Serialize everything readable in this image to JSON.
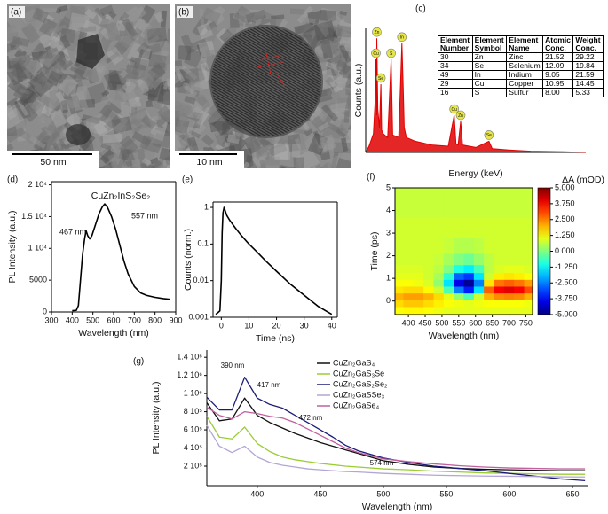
{
  "chart_data": [
    {
      "type": "image",
      "panel": "(a)",
      "scale_bar": "50 nm"
    },
    {
      "type": "image",
      "panel": "(b)",
      "scale_bar": "10 nm"
    },
    {
      "type": "spectrum",
      "panel": "(c)",
      "xlabel": "Energy (keV)",
      "ylabel": "Counts (a.u.)",
      "color": "#e00000",
      "xlim": [
        0,
        20
      ],
      "ylim": [
        0,
        100
      ],
      "x": [
        0,
        0.3,
        0.5,
        0.7,
        0.85,
        0.93,
        1.0,
        1.01,
        1.1,
        1.25,
        1.38,
        1.45,
        1.6,
        2.0,
        2.31,
        2.45,
        3.0,
        3.29,
        3.4,
        3.5,
        3.7,
        4.5,
        6,
        7.5,
        8.04,
        8.2,
        8.4,
        8.63,
        8.8,
        10,
        11.2,
        11.5,
        13,
        15,
        18,
        20
      ],
      "values": [
        0,
        5,
        10,
        15,
        40,
        75,
        30,
        92,
        35,
        20,
        55,
        18,
        15,
        12,
        75,
        14,
        12,
        88,
        55,
        20,
        12,
        9,
        6,
        5,
        30,
        7,
        6,
        25,
        6,
        4,
        9,
        3,
        2,
        1,
        0.5,
        0
      ],
      "peaks": [
        {
          "label": "Cu",
          "x": 0.93,
          "y": 75
        },
        {
          "label": "Zn",
          "x": 1.01,
          "y": 92
        },
        {
          "label": "Se",
          "x": 1.38,
          "y": 55
        },
        {
          "label": "S",
          "x": 2.31,
          "y": 75
        },
        {
          "label": "In",
          "x": 3.29,
          "y": 88
        },
        {
          "label": "Cu",
          "x": 8.04,
          "y": 30
        },
        {
          "label": "Zn",
          "x": 8.63,
          "y": 25
        },
        {
          "label": "Se",
          "x": 11.2,
          "y": 9
        }
      ],
      "table": {
        "columns": [
          "Element Number",
          "Element Symbol",
          "Element Name",
          "Atomic Conc.",
          "Weight Conc."
        ],
        "rows": [
          [
            "30",
            "Zn",
            "Zinc",
            "21.52",
            "29.22"
          ],
          [
            "34",
            "Se",
            "Selenium",
            "12.09",
            "19.84"
          ],
          [
            "49",
            "In",
            "Indium",
            "9.05",
            "21.59"
          ],
          [
            "29",
            "Cu",
            "Copper",
            "10.95",
            "14.45"
          ],
          [
            "16",
            "S",
            "Sulfur",
            "8.00",
            "5.33"
          ]
        ]
      }
    },
    {
      "type": "line",
      "panel": "(d)",
      "title": "CuZn₂InS₂Se₂",
      "xlabel": "Wavelength (nm)",
      "ylabel": "PL Intensity (a.u.)",
      "color": "#000000",
      "xlim": [
        300,
        900
      ],
      "xticks": [
        300,
        400,
        500,
        600,
        700,
        800,
        900
      ],
      "ylim": [
        0,
        20500
      ],
      "yticks": [
        0,
        5000,
        {
          "value": 10000,
          "label": "1 10⁴"
        },
        {
          "value": 15000,
          "label": "1.5 10⁴"
        },
        {
          "value": 20000,
          "label": "2 10⁴"
        }
      ],
      "x": [
        400,
        420,
        430,
        440,
        450,
        460,
        467,
        475,
        485,
        495,
        510,
        530,
        545,
        557,
        570,
        590,
        610,
        630,
        650,
        670,
        700,
        730,
        760,
        800,
        840,
        870
      ],
      "values": [
        200,
        250,
        1000,
        5000,
        9000,
        11500,
        12800,
        12000,
        11500,
        12000,
        13500,
        15500,
        16500,
        17000,
        16500,
        15000,
        13000,
        10500,
        8000,
        6000,
        4000,
        3000,
        2600,
        2300,
        2100,
        2000
      ],
      "annotations": [
        "467 nm",
        "557 nm"
      ]
    },
    {
      "type": "line",
      "panel": "(e)",
      "xlabel": "Time (ns)",
      "ylabel": "Counts (norm.)",
      "color": "#000000",
      "log_y": true,
      "xlim": [
        -3,
        42
      ],
      "xticks": [
        0,
        10,
        20,
        30,
        40
      ],
      "ylim": [
        0.001,
        1.4
      ],
      "yticks": [
        0.001,
        0.01,
        0.1,
        1
      ],
      "x": [
        -2,
        -0.5,
        0,
        0.3,
        0.6,
        1,
        2,
        3,
        5,
        7,
        10,
        13,
        16,
        20,
        25,
        30,
        35,
        40
      ],
      "values": [
        0.0012,
        0.0015,
        0.01,
        0.2,
        0.7,
        1,
        0.6,
        0.45,
        0.28,
        0.18,
        0.1,
        0.06,
        0.035,
        0.018,
        0.008,
        0.004,
        0.002,
        0.0012
      ]
    },
    {
      "type": "heatmap",
      "panel": "(f)",
      "xlabel": "Wavelength (nm)",
      "ylabel": "Time (ps)",
      "colorbar_title": "ΔA (mOD)",
      "colormap": "jet",
      "xlim": [
        360,
        770
      ],
      "xticks": [
        400,
        450,
        500,
        550,
        600,
        650,
        700,
        750
      ],
      "ylim": [
        -0.6,
        5
      ],
      "yticks": [
        0,
        1,
        2,
        3,
        4,
        5
      ],
      "clim": [
        -5,
        5
      ],
      "cticks": [
        {
          "value": 5,
          "label": "5.000"
        },
        {
          "value": 3.75,
          "label": "3.750"
        },
        {
          "value": 2.5,
          "label": "2.500"
        },
        {
          "value": 1.25,
          "label": "1.250"
        },
        {
          "value": 0,
          "label": "0.000"
        },
        {
          "value": -1.25,
          "label": "-1.250"
        },
        {
          "value": -2.5,
          "label": "-2.500"
        },
        {
          "value": -3.75,
          "label": "-3.750"
        },
        {
          "value": -5,
          "label": "-5.000"
        }
      ],
      "x": [
        370,
        400,
        430,
        460,
        490,
        520,
        550,
        580,
        610,
        640,
        670,
        700,
        730,
        760
      ],
      "y": [
        -0.4,
        -0.1,
        0.2,
        0.5,
        0.8,
        1.1,
        1.4,
        1.8,
        2.4,
        3.2,
        4.2,
        5
      ],
      "z": [
        [
          1.2,
          1.3,
          1.3,
          1.2,
          1.1,
          1.0,
          1.0,
          1.0,
          1.0,
          1.0,
          1.0,
          1.0,
          1.0,
          1.0
        ],
        [
          1.6,
          1.8,
          1.8,
          1.6,
          1.4,
          1.2,
          1.1,
          1.0,
          1.1,
          1.2,
          1.2,
          1.2,
          1.2,
          1.1
        ],
        [
          2.0,
          2.2,
          2.2,
          2.0,
          1.6,
          1.0,
          0.2,
          -0.5,
          0.8,
          2.0,
          2.4,
          2.5,
          2.4,
          2.0
        ],
        [
          1.5,
          1.6,
          1.6,
          1.3,
          0.8,
          -0.5,
          -2.5,
          -3.5,
          -1.5,
          2.8,
          3.8,
          4.0,
          3.8,
          3.0
        ],
        [
          1.2,
          1.2,
          1.1,
          0.9,
          0.2,
          -1.5,
          -4.0,
          -4.8,
          -2.5,
          1.5,
          2.6,
          2.8,
          2.6,
          2.2
        ],
        [
          1.0,
          1.0,
          1.0,
          0.8,
          0.4,
          -0.8,
          -2.8,
          -3.2,
          -1.5,
          0.8,
          1.4,
          1.5,
          1.4,
          1.2
        ],
        [
          0.9,
          0.9,
          0.9,
          0.8,
          0.6,
          0.0,
          -1.0,
          -1.4,
          -0.6,
          0.6,
          0.9,
          1.0,
          1.0,
          0.9
        ],
        [
          0.8,
          0.8,
          0.8,
          0.8,
          0.7,
          0.4,
          0.0,
          -0.2,
          0.2,
          0.6,
          0.8,
          0.8,
          0.8,
          0.8
        ],
        [
          0.8,
          0.8,
          0.8,
          0.8,
          0.8,
          0.7,
          0.5,
          0.5,
          0.6,
          0.8,
          0.8,
          0.8,
          0.8,
          0.8
        ],
        [
          0.8,
          0.8,
          0.8,
          0.8,
          0.8,
          0.8,
          0.8,
          0.8,
          0.8,
          0.8,
          0.8,
          0.8,
          0.8,
          0.8
        ],
        [
          0.7,
          0.7,
          0.7,
          0.7,
          0.7,
          0.7,
          0.7,
          0.7,
          0.7,
          0.7,
          0.7,
          0.7,
          0.7,
          0.7
        ],
        [
          0.7,
          0.7,
          0.7,
          0.7,
          0.7,
          0.7,
          0.7,
          0.7,
          0.7,
          0.7,
          0.7,
          0.7,
          0.7,
          0.7
        ]
      ]
    },
    {
      "type": "multiline",
      "panel": "(g)",
      "xlabel": "Wavelength (nm)",
      "ylabel": "PL Intensity (a.u.)",
      "xlim": [
        360,
        662
      ],
      "xticks": [
        400,
        450,
        500,
        550,
        600,
        650
      ],
      "ylim": [
        -15000,
        1480000
      ],
      "yticks": [
        {
          "value": 200000,
          "label": "2 10⁵"
        },
        {
          "value": 400000,
          "label": "4 10⁵"
        },
        {
          "value": 600000,
          "label": "6 10⁵"
        },
        {
          "value": 800000,
          "label": "8 10⁵"
        },
        {
          "value": 1000000,
          "label": "1 10⁶"
        },
        {
          "value": 1200000,
          "label": "1.2 10⁶"
        },
        {
          "value": 1400000,
          "label": "1.4 10⁶"
        }
      ],
      "x": [
        360,
        370,
        380,
        390,
        400,
        410,
        420,
        430,
        440,
        450,
        460,
        470,
        480,
        500,
        520,
        540,
        560,
        580,
        600,
        620,
        640,
        660
      ],
      "series": [
        {
          "name": "CuZn₂GaS₄",
          "color": "#111111",
          "values": [
            900000,
            700000,
            720000,
            950000,
            760000,
            680000,
            620000,
            560000,
            510000,
            460000,
            420000,
            380000,
            340000,
            260000,
            220000,
            190000,
            175000,
            165000,
            160000,
            155000,
            150000,
            150000
          ]
        },
        {
          "name": "CuZn₂GaS₃Se",
          "color": "#9acd32",
          "values": [
            750000,
            520000,
            500000,
            630000,
            450000,
            360000,
            300000,
            270000,
            250000,
            230000,
            215000,
            200000,
            190000,
            170000,
            160000,
            145000,
            135000,
            125000,
            120000,
            115000,
            110000,
            110000
          ]
        },
        {
          "name": "CuZn₂GaS₂Se₂",
          "color": "#1c1c78",
          "values": [
            960000,
            820000,
            820000,
            1180000,
            950000,
            880000,
            840000,
            760000,
            680000,
            600000,
            520000,
            430000,
            370000,
            290000,
            240000,
            200000,
            175000,
            150000,
            120000,
            90000,
            60000,
            40000
          ]
        },
        {
          "name": "CuZn₂GaSSe₃",
          "color": "#b3a6d6",
          "values": [
            650000,
            420000,
            350000,
            420000,
            300000,
            240000,
            210000,
            190000,
            170000,
            160000,
            150000,
            140000,
            135000,
            120000,
            110000,
            100000,
            95000,
            90000,
            88000,
            85000,
            82000,
            80000
          ]
        },
        {
          "name": "CuZn₂GaSe₄",
          "color": "#c0609e",
          "values": [
            850000,
            760000,
            720000,
            800000,
            780000,
            750000,
            730000,
            680000,
            610000,
            540000,
            470000,
            400000,
            350000,
            280000,
            250000,
            225000,
            205000,
            190000,
            180000,
            175000,
            170000,
            170000
          ]
        }
      ],
      "annotations": [
        {
          "text": "390 nm",
          "color": "#111111"
        },
        {
          "text": "417 nm",
          "color": "#1c1c78"
        },
        {
          "text": "472 nm",
          "color": "#111111"
        },
        {
          "text": "574 nm",
          "color": "#1c1c78"
        }
      ]
    }
  ]
}
